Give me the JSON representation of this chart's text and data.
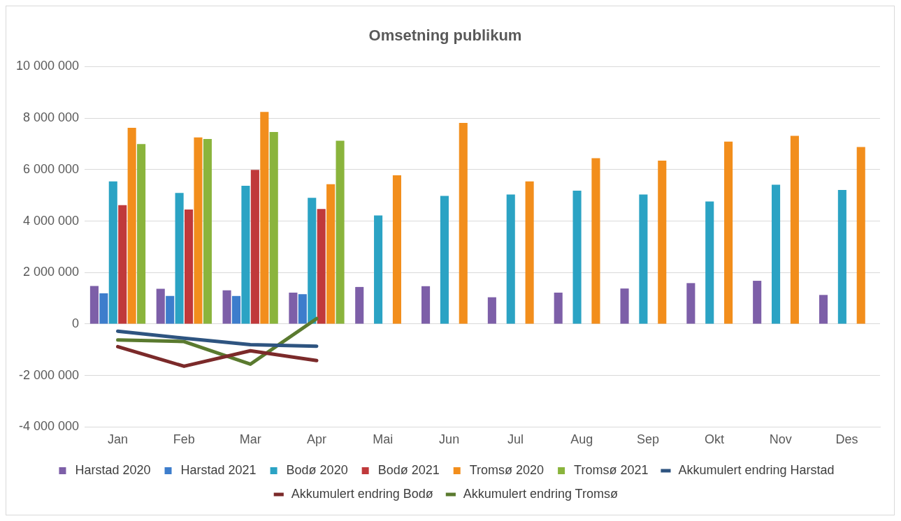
{
  "chart_data": {
    "type": "bar",
    "title": "Omsetning publikum",
    "categories": [
      "Jan",
      "Feb",
      "Mar",
      "Apr",
      "Mai",
      "Jun",
      "Jul",
      "Aug",
      "Sep",
      "Okt",
      "Nov",
      "Des"
    ],
    "series": [
      {
        "name": "Harstad 2020",
        "color": "#7d5fa8",
        "values": [
          1480000,
          1370000,
          1310000,
          1220000,
          1440000,
          1470000,
          1040000,
          1220000,
          1380000,
          1590000,
          1680000,
          1130000
        ]
      },
      {
        "name": "Harstad 2021",
        "color": "#3d7dcc",
        "values": [
          1190000,
          1090000,
          1090000,
          1160000,
          null,
          null,
          null,
          null,
          null,
          null,
          null,
          null
        ]
      },
      {
        "name": "Bodø 2020",
        "color": "#2ba3c4",
        "values": [
          5540000,
          5090000,
          5370000,
          4900000,
          4220000,
          4980000,
          5030000,
          5180000,
          5030000,
          4760000,
          5410000,
          5210000
        ]
      },
      {
        "name": "Bodø 2021",
        "color": "#c0393b",
        "values": [
          4620000,
          4450000,
          5990000,
          4470000,
          null,
          null,
          null,
          null,
          null,
          null,
          null,
          null
        ]
      },
      {
        "name": "Tromsø 2020",
        "color": "#f28e1c",
        "values": [
          7620000,
          7250000,
          8240000,
          5430000,
          5780000,
          7810000,
          5540000,
          6440000,
          6350000,
          7090000,
          7310000,
          6880000
        ]
      },
      {
        "name": "Tromsø 2021",
        "color": "#8ab43c",
        "values": [
          6990000,
          7190000,
          7460000,
          7120000,
          null,
          null,
          null,
          null,
          null,
          null,
          null,
          null
        ]
      },
      {
        "name": "Akkumulert endring Harstad",
        "type": "line",
        "color": "#2e5480",
        "values": [
          -280000,
          -550000,
          -800000,
          -860000,
          null,
          null,
          null,
          null,
          null,
          null,
          null,
          null
        ]
      },
      {
        "name": "Akkumulert endring Bodø",
        "type": "line",
        "color": "#7b2a2a",
        "values": [
          -880000,
          -1640000,
          -1040000,
          -1420000,
          null,
          null,
          null,
          null,
          null,
          null,
          null,
          null
        ]
      },
      {
        "name": "Akkumulert endring Tromsø",
        "type": "line",
        "color": "#5a7a2f",
        "values": [
          -620000,
          -680000,
          -1560000,
          210000,
          null,
          null,
          null,
          null,
          null,
          null,
          null,
          null
        ]
      }
    ],
    "ylim": [
      -4000000,
      10000000
    ],
    "yticks": [
      {
        "value": -4000000,
        "label": "-4 000 000"
      },
      {
        "value": -2000000,
        "label": "-2 000 000"
      },
      {
        "value": 0,
        "label": "0"
      },
      {
        "value": 2000000,
        "label": "2 000 000"
      },
      {
        "value": 4000000,
        "label": "4 000 000"
      },
      {
        "value": 6000000,
        "label": "6 000 000"
      },
      {
        "value": 8000000,
        "label": "8 000 000"
      },
      {
        "value": 10000000,
        "label": "10 000 000"
      }
    ],
    "grid": "y",
    "legend": "bottom",
    "marker": "none"
  }
}
